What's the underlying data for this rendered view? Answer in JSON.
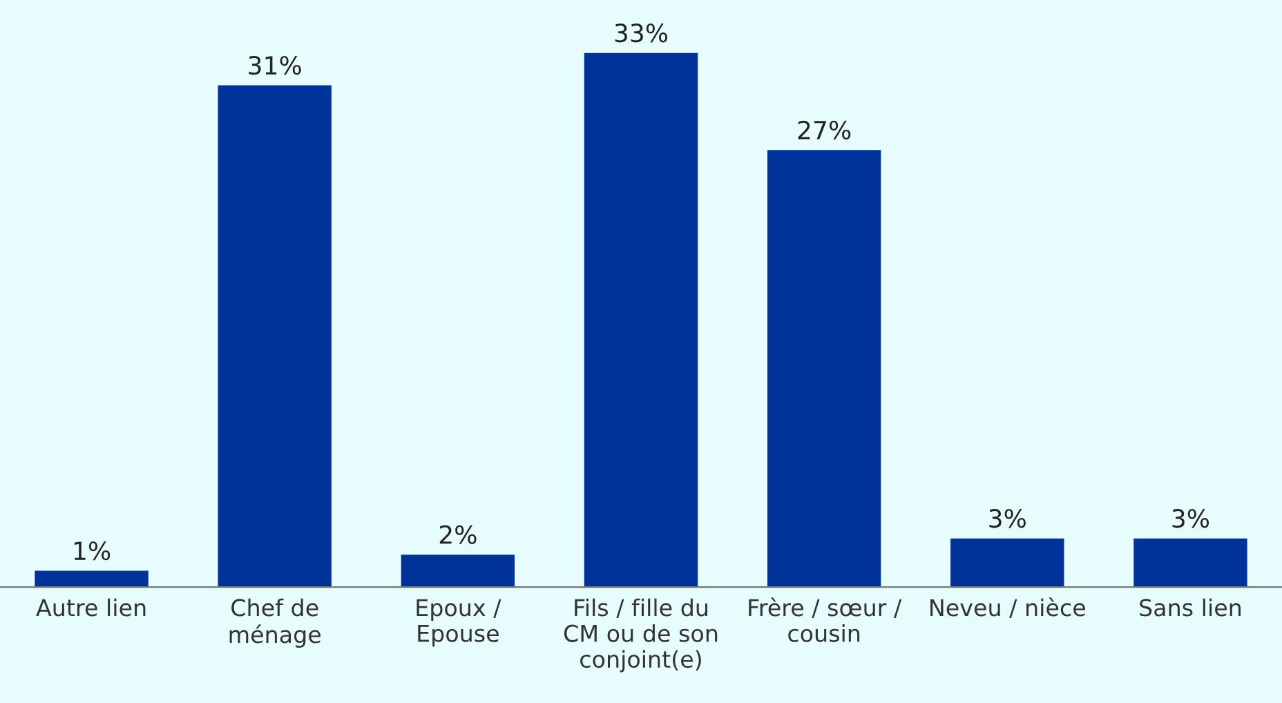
{
  "chart_data": {
    "type": "bar",
    "categories": [
      "Autre lien",
      "Chef de\nménage",
      "Epoux /\nEpouse",
      "Fils / fille du\nCM ou de son\nconjoint(e)",
      "Frère / sœur /\ncousin",
      "Neveu / nièce",
      "Sans lien"
    ],
    "values": [
      1,
      31,
      2,
      33,
      27,
      3,
      3
    ],
    "value_labels": [
      "1%",
      "31%",
      "2%",
      "33%",
      "27%",
      "3%",
      "3%"
    ],
    "color": "#003399",
    "grid": false
  }
}
